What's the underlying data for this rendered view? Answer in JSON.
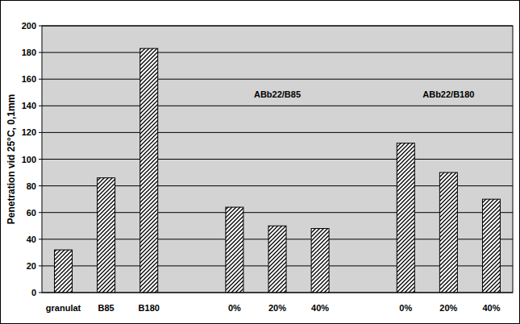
{
  "chart_data": {
    "type": "bar",
    "y_label": "Penetration vid 25°C, 0,1mm",
    "categories": [
      "granulat",
      "B85",
      "B180",
      null,
      "0%",
      "20%",
      "40%",
      null,
      "0%",
      "20%",
      "40%"
    ],
    "values": [
      32,
      86,
      183,
      null,
      64,
      50,
      48,
      null,
      112,
      90,
      70
    ],
    "annotations": [
      "ABb22/B85",
      "ABb22/B180"
    ],
    "color": "#000000",
    "ylim": [
      0,
      200
    ],
    "yticks": [
      0,
      20,
      40,
      60,
      80,
      100,
      120,
      140,
      160,
      180,
      200
    ],
    "grid": true
  }
}
